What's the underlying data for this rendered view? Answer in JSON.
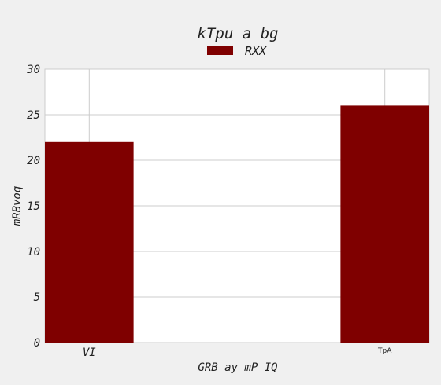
{
  "chart_data": {
    "type": "bar",
    "title": "kTpu a bg",
    "xlabel": "GRB ay mP IQ",
    "ylabel": "mRBvoq",
    "categories": [
      "VI",
      "TpA"
    ],
    "series": [
      {
        "name": "RXX",
        "values": [
          22,
          26
        ],
        "color": "#7f0000"
      }
    ],
    "ylim": [
      0,
      30
    ],
    "yticks": [
      "0",
      "5",
      "10",
      "15",
      "20",
      "25",
      "30"
    ],
    "grid": true,
    "legend": "top-center"
  }
}
